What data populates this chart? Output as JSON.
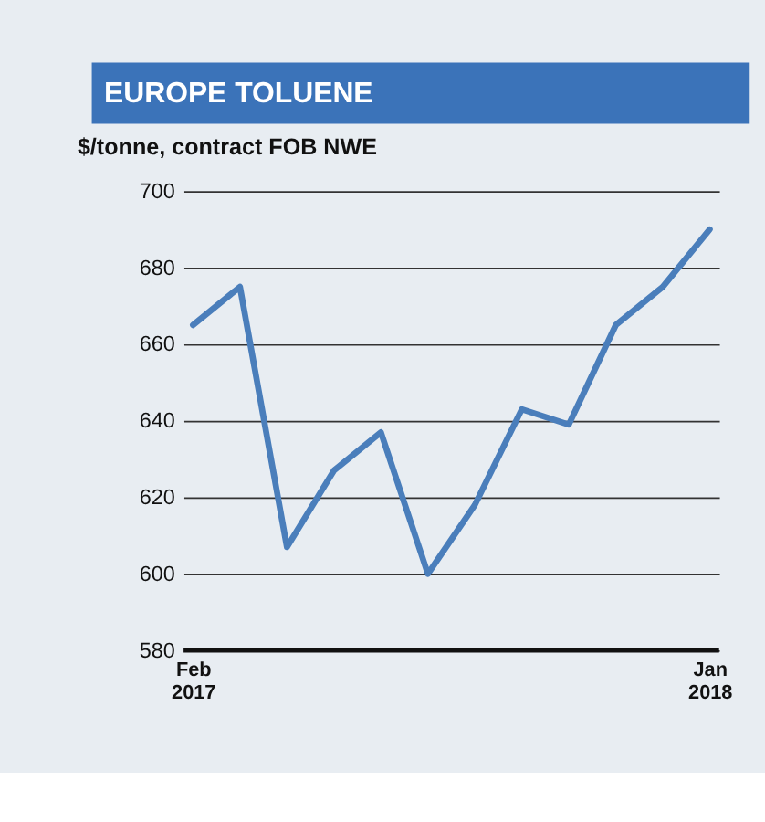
{
  "chart_data": {
    "type": "line",
    "title": "EUROPE TOLUENE",
    "subtitle": "$/tonne, contract FOB NWE",
    "categories": [
      "Feb 2017",
      null,
      null,
      null,
      null,
      null,
      null,
      null,
      null,
      null,
      null,
      "Jan 2018"
    ],
    "values": [
      665,
      675,
      607,
      627,
      637,
      600,
      618,
      643,
      639,
      665,
      675,
      690
    ],
    "color": "#4a7ebb",
    "ylim": [
      580,
      700
    ],
    "yticks": [
      580,
      600,
      620,
      640,
      660,
      680,
      700
    ],
    "grid": "y"
  }
}
